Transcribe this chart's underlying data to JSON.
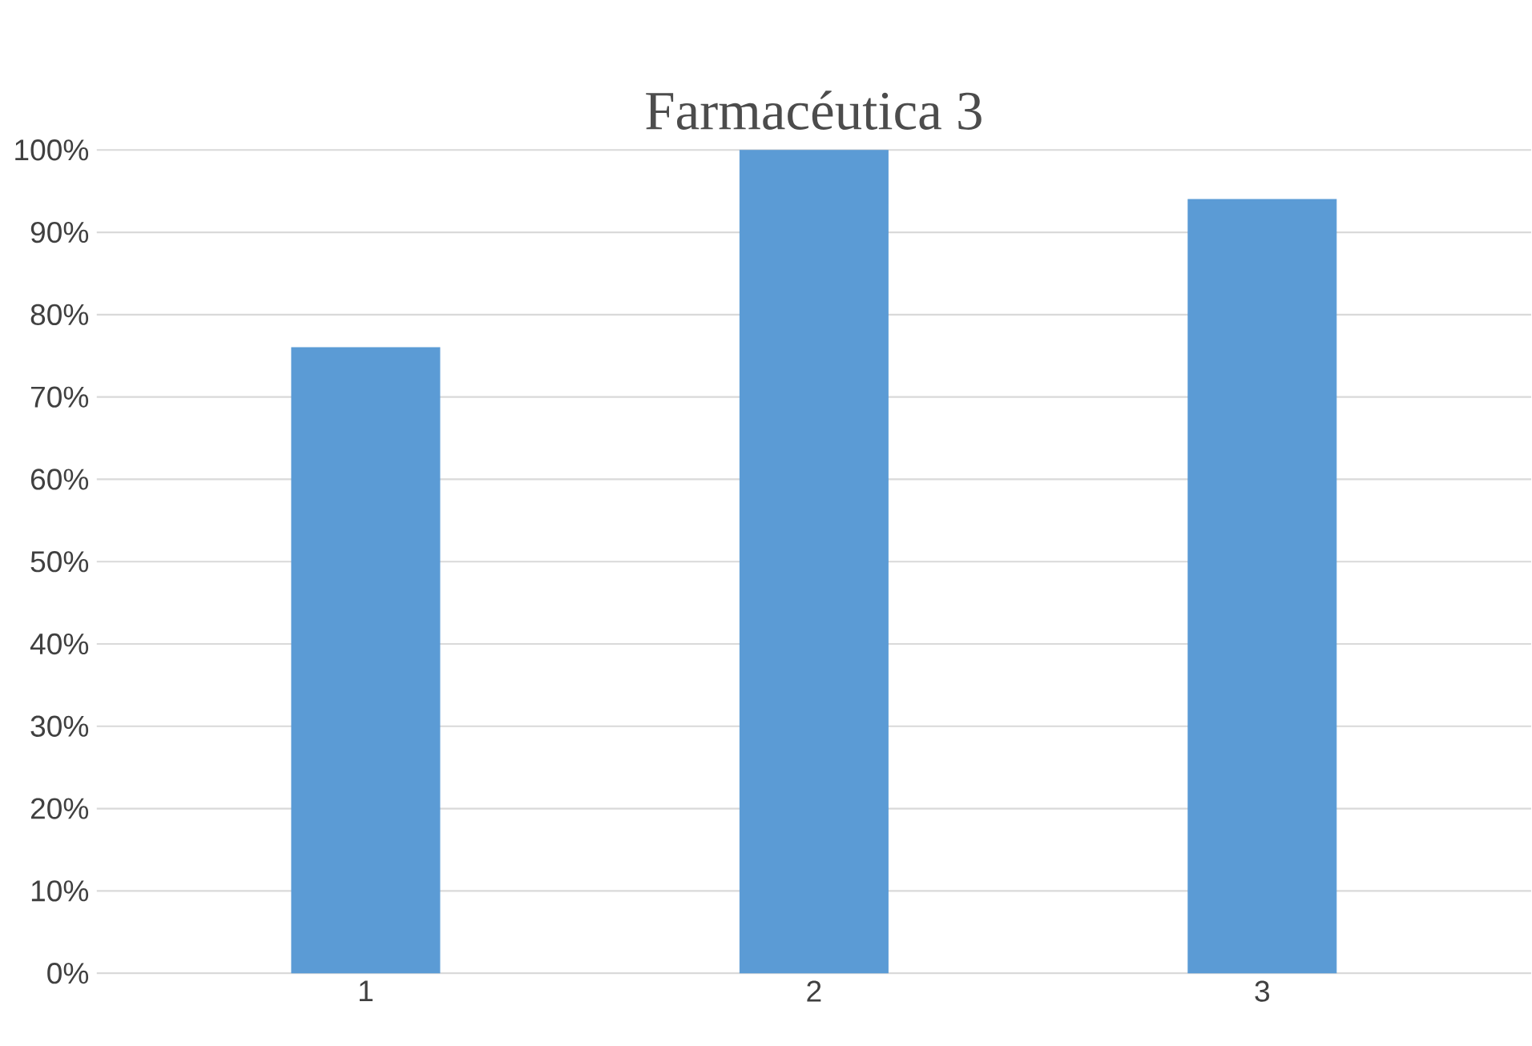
{
  "chart_data": {
    "type": "bar",
    "title": "Farmacéutica 3",
    "categories": [
      "1",
      "2",
      "3"
    ],
    "values": [
      76,
      100,
      94
    ],
    "color": "#5b9bd5",
    "ylim": [
      0,
      100
    ],
    "yticks": [
      {
        "value": 0,
        "label": "0%"
      },
      {
        "value": 10,
        "label": "10%"
      },
      {
        "value": 20,
        "label": "20%"
      },
      {
        "value": 30,
        "label": "30%"
      },
      {
        "value": 40,
        "label": "40%"
      },
      {
        "value": 50,
        "label": "50%"
      },
      {
        "value": 60,
        "label": "60%"
      },
      {
        "value": 70,
        "label": "70%"
      },
      {
        "value": 80,
        "label": "80%"
      },
      {
        "value": 90,
        "label": "90%"
      },
      {
        "value": 100,
        "label": "100%"
      }
    ],
    "grid": "y"
  }
}
